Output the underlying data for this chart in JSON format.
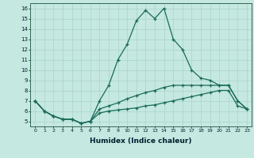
{
  "xlabel": "Humidex (Indice chaleur)",
  "x": [
    0,
    1,
    2,
    3,
    4,
    5,
    6,
    7,
    8,
    9,
    10,
    11,
    12,
    13,
    14,
    15,
    16,
    17,
    18,
    19,
    20,
    21,
    22,
    23
  ],
  "line_main": [
    7.0,
    6.0,
    5.5,
    5.2,
    5.2,
    4.8,
    5.0,
    7.0,
    8.5,
    11.0,
    12.5,
    14.8,
    15.8,
    15.0,
    16.0,
    13.0,
    12.0,
    10.0,
    9.2,
    9.0,
    8.5,
    8.5,
    7.0,
    6.2
  ],
  "line_mid": [
    7.0,
    6.0,
    5.5,
    5.2,
    5.2,
    4.8,
    5.0,
    6.2,
    6.5,
    6.8,
    7.2,
    7.5,
    7.8,
    8.0,
    8.3,
    8.5,
    8.5,
    8.5,
    8.5,
    8.5,
    8.5,
    8.5,
    7.0,
    6.2
  ],
  "line_low": [
    7.0,
    6.0,
    5.5,
    5.2,
    5.2,
    4.8,
    5.0,
    5.8,
    6.0,
    6.1,
    6.2,
    6.3,
    6.5,
    6.6,
    6.8,
    7.0,
    7.2,
    7.4,
    7.6,
    7.8,
    8.0,
    8.0,
    6.5,
    6.2
  ],
  "bg_color": "#c5e8e0",
  "line_color": "#1a6b5a",
  "grid_color": "#a8d4cc",
  "ylim": [
    4.5,
    16.5
  ],
  "xlim": [
    -0.5,
    23.5
  ],
  "yticks": [
    5,
    6,
    7,
    8,
    9,
    10,
    11,
    12,
    13,
    14,
    15,
    16
  ],
  "xticks": [
    0,
    1,
    2,
    3,
    4,
    5,
    6,
    7,
    8,
    9,
    10,
    11,
    12,
    13,
    14,
    15,
    16,
    17,
    18,
    19,
    20,
    21,
    22,
    23
  ]
}
